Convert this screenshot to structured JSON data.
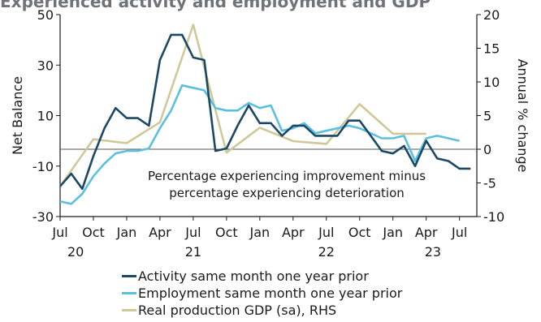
{
  "chart_data": {
    "type": "line",
    "title": "Experienced activity and employment and GDP",
    "ylabel": "Net Balance",
    "y2label": "Annual % change",
    "ylim": [
      -30,
      50
    ],
    "y2lim": [
      -10,
      20
    ],
    "yticks": [
      -30,
      -10,
      10,
      30,
      50
    ],
    "y2ticks": [
      -10,
      -5,
      0,
      5,
      10,
      15,
      20
    ],
    "x_tick_labels": [
      "Jul",
      "Oct",
      "Jan",
      "Apr",
      "Jul",
      "Oct",
      "Jan",
      "Apr",
      "Jul",
      "Oct",
      "Jan",
      "Apr",
      "Jul"
    ],
    "x_year_labels": [
      {
        "label": "20",
        "month_index": 1.4
      },
      {
        "label": "21",
        "month_index": 12
      },
      {
        "label": "22",
        "month_index": 24
      },
      {
        "label": "23",
        "month_index": 33.6
      }
    ],
    "x_tick_month_index": [
      0,
      3,
      6,
      9,
      12,
      15,
      18,
      21,
      24,
      27,
      30,
      33,
      36
    ],
    "reference_line": 0,
    "annotation": [
      "Percentage experiencing improvement minus",
      "percentage experiencing deterioration"
    ],
    "legend_position": "bottom",
    "series": [
      {
        "name": "Activity same month one year prior",
        "axis": "left",
        "color": "#1b4965",
        "x": [
          0,
          1,
          2,
          3,
          4,
          5,
          6,
          7,
          8,
          9,
          10,
          11,
          12,
          13,
          14,
          15,
          16,
          17,
          18,
          19,
          20,
          21,
          22,
          23,
          24,
          25,
          26,
          27,
          28,
          29,
          30,
          31,
          32,
          33,
          34,
          35,
          36,
          37
        ],
        "values": [
          -18,
          -13,
          -19,
          -6,
          5,
          13,
          9,
          9,
          6,
          32,
          42,
          42,
          33,
          32,
          -4,
          -3,
          6,
          14,
          7,
          7,
          2,
          6,
          6,
          2,
          2,
          2,
          8,
          8,
          2,
          -4,
          -5,
          -2,
          -10,
          0,
          -7,
          -8,
          -11,
          -11
        ]
      },
      {
        "name": "Employment same month one year prior",
        "axis": "left",
        "color": "#5bc0de",
        "x": [
          0,
          1,
          2,
          3,
          4,
          5,
          6,
          7,
          8,
          9,
          10,
          11,
          12,
          13,
          14,
          15,
          16,
          17,
          18,
          19,
          20,
          21,
          22,
          23,
          24,
          25,
          26,
          27,
          28,
          29,
          30,
          31,
          32,
          33,
          34,
          35,
          36
        ],
        "values": [
          -24,
          -25,
          -21,
          -14,
          -9,
          -5,
          -4,
          -4,
          -3,
          5,
          12,
          22,
          21,
          20,
          13,
          12,
          12,
          15,
          13,
          14,
          4,
          5,
          7,
          3,
          4,
          5,
          6,
          5,
          3,
          1,
          1,
          2,
          -8,
          1,
          2,
          1,
          0
        ]
      },
      {
        "name": "Real production GDP (sa), RHS",
        "axis": "right",
        "color": "#cfc99a",
        "x": [
          0,
          3,
          6,
          9,
          12,
          15,
          18,
          21,
          24,
          27,
          30,
          33
        ],
        "values": [
          -5.5,
          1.5,
          0.9,
          4,
          18.5,
          -0.5,
          3.2,
          1.2,
          0.8,
          6.7,
          2.3,
          2.3
        ]
      }
    ]
  }
}
